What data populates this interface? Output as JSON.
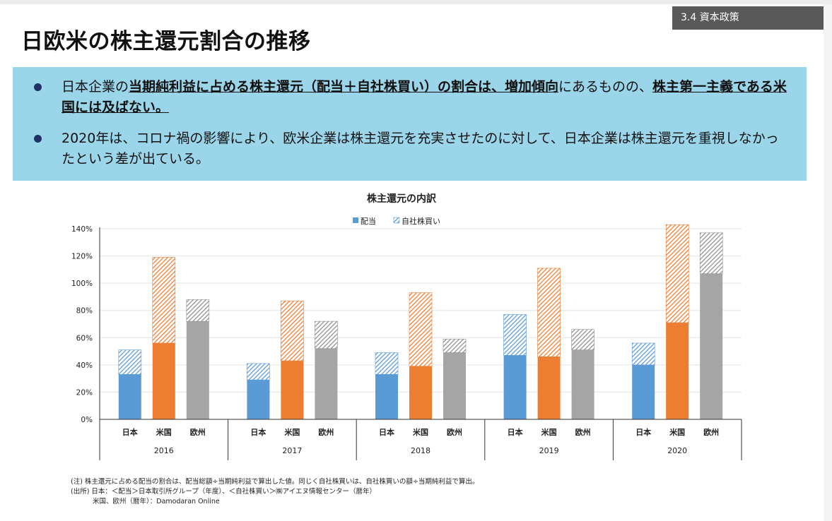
{
  "header": {
    "section_tag": "3.4 資本政策",
    "title": "日欧米の株主還元割合の推移"
  },
  "summary": {
    "bullet1": {
      "p1": "日本企業の",
      "p2": "当期純利益に占める株主還元（配当＋自社株買い）の割合は、増加傾向",
      "p3": "にあるものの、",
      "p4": "株主第一主義",
      "p5": "である米国には及ばない。"
    },
    "bullet2": "2020年は、コロナ禍の影響により、欧米企業は株主還元を充実させたのに対して、日本企業は株主還元を重視しなかったという差が出ている。"
  },
  "colors": {
    "japan": "#5b9bd5",
    "us": "#ed7d31",
    "eu": "#a5a5a5",
    "panel_bg": "#9bd5ea",
    "bullet_dot": "#1f3268",
    "tag_bg": "#595959"
  },
  "chart_data": {
    "type": "bar",
    "stacked": true,
    "title": "株主還元の内訳",
    "legend": {
      "position": "top",
      "labels": [
        "配当",
        "自社株買い"
      ]
    },
    "groups": [
      "2016",
      "2017",
      "2018",
      "2019",
      "2020"
    ],
    "categories": [
      "日本",
      "米国",
      "欧州"
    ],
    "y_ticks": [
      "0%",
      "20%",
      "40%",
      "60%",
      "80%",
      "100%",
      "120%",
      "140%"
    ],
    "ylim": [
      0,
      140
    ],
    "grid": true,
    "series": [
      {
        "name": "配当",
        "values": [
          [
            33,
            56,
            72
          ],
          [
            29,
            43,
            52
          ],
          [
            33,
            39,
            49
          ],
          [
            47,
            46,
            51
          ],
          [
            40,
            71,
            107
          ]
        ]
      },
      {
        "name": "自社株買い",
        "values": [
          [
            18,
            63,
            16
          ],
          [
            12,
            44,
            20
          ],
          [
            16,
            54,
            10
          ],
          [
            30,
            65,
            15
          ],
          [
            16,
            72,
            30
          ]
        ]
      }
    ]
  },
  "notes": {
    "line1": "(注) 株主還元に占める配当の割合は、配当総額÷当期純利益で算出した値。同じく自社株買いは、自社株買いの額÷当期純利益で算出。",
    "line2": "(出所) 日本：＜配当＞日本取引所グループ（年度）、＜自社株買い＞㈱アイエヌ情報センター（暦年）",
    "line3": "米国、欧州（暦年）：Damodaran Online"
  }
}
